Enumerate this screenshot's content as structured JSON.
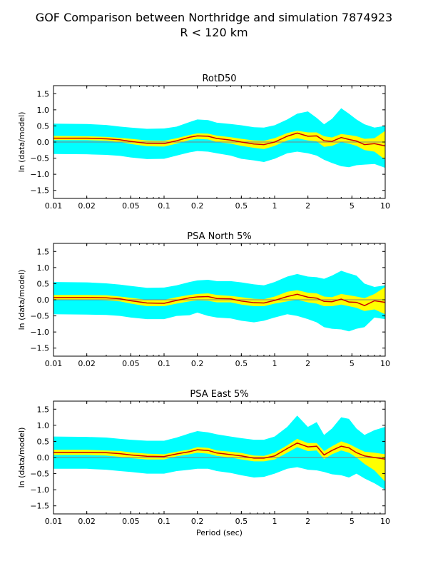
{
  "figure": {
    "title_line1": "GOF Comparison between Northridge and simulation 7874923",
    "title_line2": "R < 120 km"
  },
  "colors": {
    "outer_band": "#00ffff",
    "inner_band": "#ffff00",
    "mean_line": "#cc0000",
    "zero_line": "#808080"
  },
  "chart_data": [
    {
      "type": "area",
      "title": "RotD50",
      "xlabel": "",
      "ylabel": "ln (data/model)",
      "xscale": "log",
      "xlim": [
        0.01,
        10
      ],
      "ylim": [
        -1.75,
        1.75
      ],
      "xticks": [
        0.01,
        0.02,
        0.05,
        0.1,
        0.2,
        0.5,
        1,
        2,
        5,
        10
      ],
      "xtick_labels": [
        "0.01",
        "0.02",
        "0.05",
        "0.1",
        "0.2",
        "0.5",
        "1",
        "2",
        "5",
        "10"
      ],
      "yticks": [
        -1.5,
        -1.0,
        -0.5,
        0.0,
        0.5,
        1.0,
        1.5
      ],
      "ytick_labels": [
        "−1.5",
        "−1.0",
        "−0.5",
        "0.0",
        "0.5",
        "1.0",
        "1.5"
      ],
      "x": [
        0.01,
        0.02,
        0.03,
        0.04,
        0.05,
        0.07,
        0.1,
        0.13,
        0.17,
        0.2,
        0.25,
        0.3,
        0.4,
        0.5,
        0.65,
        0.8,
        1.0,
        1.3,
        1.6,
        2.0,
        2.4,
        2.8,
        3.3,
        4.0,
        4.7,
        5.5,
        6.5,
        8.0,
        10.0
      ],
      "series": [
        {
          "role": "outer-upper",
          "values": [
            0.57,
            0.56,
            0.53,
            0.48,
            0.45,
            0.41,
            0.42,
            0.48,
            0.62,
            0.7,
            0.68,
            0.6,
            0.56,
            0.52,
            0.46,
            0.45,
            0.52,
            0.7,
            0.88,
            0.95,
            0.75,
            0.55,
            0.72,
            1.05,
            0.88,
            0.7,
            0.55,
            0.45,
            0.5
          ]
        },
        {
          "role": "outer-lower",
          "values": [
            -0.37,
            -0.38,
            -0.4,
            -0.43,
            -0.48,
            -0.53,
            -0.52,
            -0.42,
            -0.32,
            -0.28,
            -0.3,
            -0.35,
            -0.42,
            -0.52,
            -0.57,
            -0.62,
            -0.52,
            -0.35,
            -0.3,
            -0.35,
            -0.42,
            -0.55,
            -0.65,
            -0.75,
            -0.78,
            -0.72,
            -0.7,
            -0.68,
            -0.8
          ]
        },
        {
          "role": "inner-upper",
          "values": [
            0.19,
            0.18,
            0.16,
            0.13,
            0.1,
            0.05,
            0.04,
            0.12,
            0.22,
            0.27,
            0.26,
            0.2,
            0.15,
            0.1,
            0.05,
            0.04,
            0.12,
            0.28,
            0.35,
            0.3,
            0.3,
            0.18,
            0.14,
            0.25,
            0.22,
            0.18,
            0.1,
            0.12,
            0.35
          ]
        },
        {
          "role": "inner-lower",
          "values": [
            0.06,
            0.06,
            0.04,
            0.0,
            -0.06,
            -0.13,
            -0.14,
            -0.05,
            0.06,
            0.1,
            0.08,
            0.0,
            -0.05,
            -0.12,
            -0.18,
            -0.22,
            -0.12,
            0.05,
            0.12,
            0.05,
            0.02,
            -0.15,
            -0.12,
            0.0,
            -0.05,
            -0.12,
            -0.25,
            -0.3,
            -0.55
          ]
        },
        {
          "role": "mean",
          "values": [
            0.12,
            0.12,
            0.1,
            0.07,
            0.02,
            -0.04,
            -0.05,
            0.04,
            0.15,
            0.19,
            0.18,
            0.11,
            0.06,
            0.0,
            -0.06,
            -0.08,
            0.0,
            0.18,
            0.28,
            0.18,
            0.19,
            0.04,
            0.02,
            0.14,
            0.08,
            0.03,
            -0.08,
            -0.05,
            -0.12
          ]
        }
      ]
    },
    {
      "type": "area",
      "title": "PSA North 5%",
      "xlabel": "",
      "ylabel": "ln (data/model)",
      "xscale": "log",
      "xlim": [
        0.01,
        10
      ],
      "ylim": [
        -1.75,
        1.75
      ],
      "xticks": [
        0.01,
        0.02,
        0.05,
        0.1,
        0.2,
        0.5,
        1,
        2,
        5,
        10
      ],
      "xtick_labels": [
        "0.01",
        "0.02",
        "0.05",
        "0.1",
        "0.2",
        "0.5",
        "1",
        "2",
        "5",
        "10"
      ],
      "yticks": [
        -1.5,
        -1.0,
        -0.5,
        0.0,
        0.5,
        1.0,
        1.5
      ],
      "ytick_labels": [
        "−1.5",
        "−1.0",
        "−0.5",
        "0.0",
        "0.5",
        "1.0",
        "1.5"
      ],
      "x": [
        0.01,
        0.02,
        0.03,
        0.04,
        0.05,
        0.07,
        0.1,
        0.13,
        0.17,
        0.2,
        0.25,
        0.3,
        0.4,
        0.5,
        0.65,
        0.8,
        1.0,
        1.3,
        1.6,
        2.0,
        2.4,
        2.8,
        3.3,
        4.0,
        4.7,
        5.5,
        6.5,
        8.0,
        10.0
      ],
      "series": [
        {
          "role": "outer-upper",
          "values": [
            0.55,
            0.54,
            0.51,
            0.47,
            0.43,
            0.37,
            0.38,
            0.45,
            0.55,
            0.6,
            0.62,
            0.58,
            0.58,
            0.54,
            0.48,
            0.45,
            0.55,
            0.72,
            0.8,
            0.72,
            0.7,
            0.65,
            0.75,
            0.9,
            0.82,
            0.75,
            0.5,
            0.4,
            0.45
          ]
        },
        {
          "role": "outer-lower",
          "values": [
            -0.45,
            -0.46,
            -0.47,
            -0.5,
            -0.55,
            -0.6,
            -0.6,
            -0.5,
            -0.48,
            -0.4,
            -0.5,
            -0.55,
            -0.58,
            -0.65,
            -0.7,
            -0.65,
            -0.55,
            -0.45,
            -0.5,
            -0.6,
            -0.7,
            -0.85,
            -0.9,
            -0.92,
            -0.98,
            -0.9,
            -0.85,
            -0.55,
            -0.6
          ]
        },
        {
          "role": "inner-upper",
          "values": [
            0.15,
            0.15,
            0.14,
            0.1,
            0.06,
            0.0,
            0.0,
            0.08,
            0.15,
            0.18,
            0.2,
            0.15,
            0.12,
            0.08,
            0.03,
            0.02,
            0.1,
            0.25,
            0.3,
            0.22,
            0.2,
            0.1,
            0.08,
            0.18,
            0.14,
            0.1,
            0.05,
            0.18,
            0.4
          ]
        },
        {
          "role": "inner-lower",
          "values": [
            0.0,
            0.0,
            -0.02,
            -0.05,
            -0.12,
            -0.2,
            -0.2,
            -0.12,
            -0.05,
            -0.02,
            -0.03,
            -0.08,
            -0.08,
            -0.15,
            -0.2,
            -0.2,
            -0.12,
            -0.05,
            0.0,
            -0.08,
            -0.12,
            -0.2,
            -0.2,
            -0.15,
            -0.2,
            -0.25,
            -0.35,
            -0.3,
            -0.45
          ]
        },
        {
          "role": "mean",
          "values": [
            0.07,
            0.07,
            0.06,
            0.03,
            -0.03,
            -0.1,
            -0.11,
            -0.02,
            0.06,
            0.09,
            0.1,
            0.04,
            0.03,
            -0.04,
            -0.09,
            -0.1,
            -0.02,
            0.1,
            0.17,
            0.08,
            0.05,
            -0.05,
            -0.06,
            0.02,
            -0.07,
            -0.08,
            -0.18,
            -0.03,
            -0.08
          ]
        }
      ]
    },
    {
      "type": "area",
      "title": "PSA East 5%",
      "xlabel": "Period (sec)",
      "ylabel": "ln (data/model)",
      "xscale": "log",
      "xlim": [
        0.01,
        10
      ],
      "ylim": [
        -1.75,
        1.75
      ],
      "xticks": [
        0.01,
        0.02,
        0.05,
        0.1,
        0.2,
        0.5,
        1,
        2,
        5,
        10
      ],
      "xtick_labels": [
        "0.01",
        "0.02",
        "0.05",
        "0.1",
        "0.2",
        "0.5",
        "1",
        "2",
        "5",
        "10"
      ],
      "yticks": [
        -1.5,
        -1.0,
        -0.5,
        0.0,
        0.5,
        1.0,
        1.5
      ],
      "ytick_labels": [
        "−1.5",
        "−1.0",
        "−0.5",
        "0.0",
        "0.5",
        "1.0",
        "1.5"
      ],
      "x": [
        0.01,
        0.02,
        0.03,
        0.04,
        0.05,
        0.07,
        0.1,
        0.13,
        0.17,
        0.2,
        0.25,
        0.3,
        0.4,
        0.5,
        0.65,
        0.8,
        1.0,
        1.3,
        1.6,
        2.0,
        2.4,
        2.8,
        3.3,
        4.0,
        4.7,
        5.5,
        6.5,
        8.0,
        10.0
      ],
      "series": [
        {
          "role": "outer-upper",
          "values": [
            0.65,
            0.64,
            0.62,
            0.58,
            0.55,
            0.52,
            0.52,
            0.62,
            0.75,
            0.82,
            0.78,
            0.72,
            0.65,
            0.6,
            0.55,
            0.55,
            0.65,
            0.95,
            1.3,
            0.95,
            1.1,
            0.7,
            0.9,
            1.25,
            1.2,
            0.9,
            0.7,
            0.85,
            0.95
          ]
        },
        {
          "role": "outer-lower",
          "values": [
            -0.35,
            -0.35,
            -0.38,
            -0.42,
            -0.45,
            -0.5,
            -0.5,
            -0.42,
            -0.38,
            -0.35,
            -0.35,
            -0.42,
            -0.48,
            -0.55,
            -0.62,
            -0.6,
            -0.5,
            -0.35,
            -0.3,
            -0.38,
            -0.4,
            -0.45,
            -0.52,
            -0.55,
            -0.62,
            -0.5,
            -0.65,
            -0.8,
            -1.0
          ]
        },
        {
          "role": "inner-upper",
          "values": [
            0.24,
            0.24,
            0.22,
            0.2,
            0.16,
            0.12,
            0.1,
            0.18,
            0.25,
            0.32,
            0.3,
            0.22,
            0.18,
            0.14,
            0.06,
            0.05,
            0.15,
            0.38,
            0.58,
            0.45,
            0.45,
            0.2,
            0.35,
            0.5,
            0.42,
            0.3,
            0.18,
            0.15,
            0.1
          ]
        },
        {
          "role": "inner-lower",
          "values": [
            0.08,
            0.08,
            0.06,
            0.02,
            -0.02,
            -0.06,
            -0.06,
            0.04,
            0.1,
            0.15,
            0.12,
            0.05,
            0.0,
            -0.06,
            -0.12,
            -0.12,
            -0.06,
            0.15,
            0.32,
            0.2,
            0.22,
            -0.05,
            0.1,
            0.22,
            0.15,
            0.0,
            -0.2,
            -0.4,
            -0.75
          ]
        },
        {
          "role": "mean",
          "values": [
            0.16,
            0.16,
            0.15,
            0.12,
            0.08,
            0.04,
            0.03,
            0.11,
            0.18,
            0.24,
            0.22,
            0.14,
            0.09,
            0.05,
            -0.02,
            -0.02,
            0.05,
            0.28,
            0.45,
            0.33,
            0.35,
            0.08,
            0.22,
            0.35,
            0.3,
            0.15,
            0.05,
            0.0,
            -0.05
          ]
        }
      ]
    }
  ]
}
